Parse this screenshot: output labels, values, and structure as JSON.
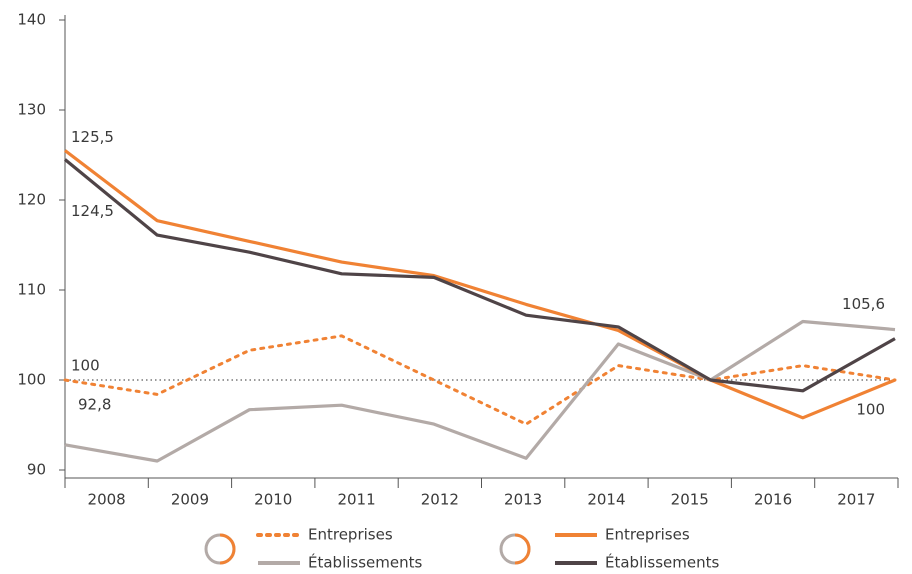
{
  "chart_data": {
    "type": "line",
    "categories": [
      "2008",
      "2009",
      "2010",
      "2011",
      "2012",
      "2013",
      "2014",
      "2015",
      "2016",
      "2017"
    ],
    "ylim": [
      90,
      140
    ],
    "yticks": [
      90,
      100,
      110,
      120,
      130,
      140
    ],
    "reference_y": 100,
    "series": [
      {
        "name": "Entreprises",
        "color": "#f08234",
        "dash": true,
        "values": [
          100,
          98.4,
          103.3,
          104.9,
          100,
          95.1,
          101.6,
          100,
          101.6,
          100
        ],
        "value_labels": [
          "100",
          null,
          null,
          null,
          null,
          null,
          null,
          null,
          null,
          null
        ]
      },
      {
        "name": "Établissements",
        "color": "#b3aaa7",
        "dash": false,
        "values": [
          92.8,
          91,
          96.7,
          97.2,
          95.1,
          91.3,
          104,
          100,
          106.5,
          105.6
        ],
        "value_labels": [
          "92,8",
          null,
          null,
          null,
          null,
          null,
          null,
          null,
          null,
          "105,6"
        ]
      },
      {
        "name": "Entreprises",
        "color": "#f08234",
        "dash": false,
        "values": [
          125.5,
          117.7,
          115.4,
          113.1,
          111.6,
          108.4,
          105.5,
          100,
          95.8,
          100
        ],
        "value_labels": [
          "125,5",
          null,
          null,
          null,
          null,
          null,
          null,
          null,
          null,
          "100"
        ]
      },
      {
        "name": "Établissements",
        "color": "#4f4447",
        "dash": false,
        "values": [
          124.5,
          116.1,
          114.2,
          111.8,
          111.4,
          107.2,
          105.9,
          100,
          98.8,
          104.6
        ],
        "value_labels": [
          "124,5",
          null,
          null,
          null,
          null,
          null,
          null,
          null,
          null,
          null
        ]
      }
    ]
  }
}
